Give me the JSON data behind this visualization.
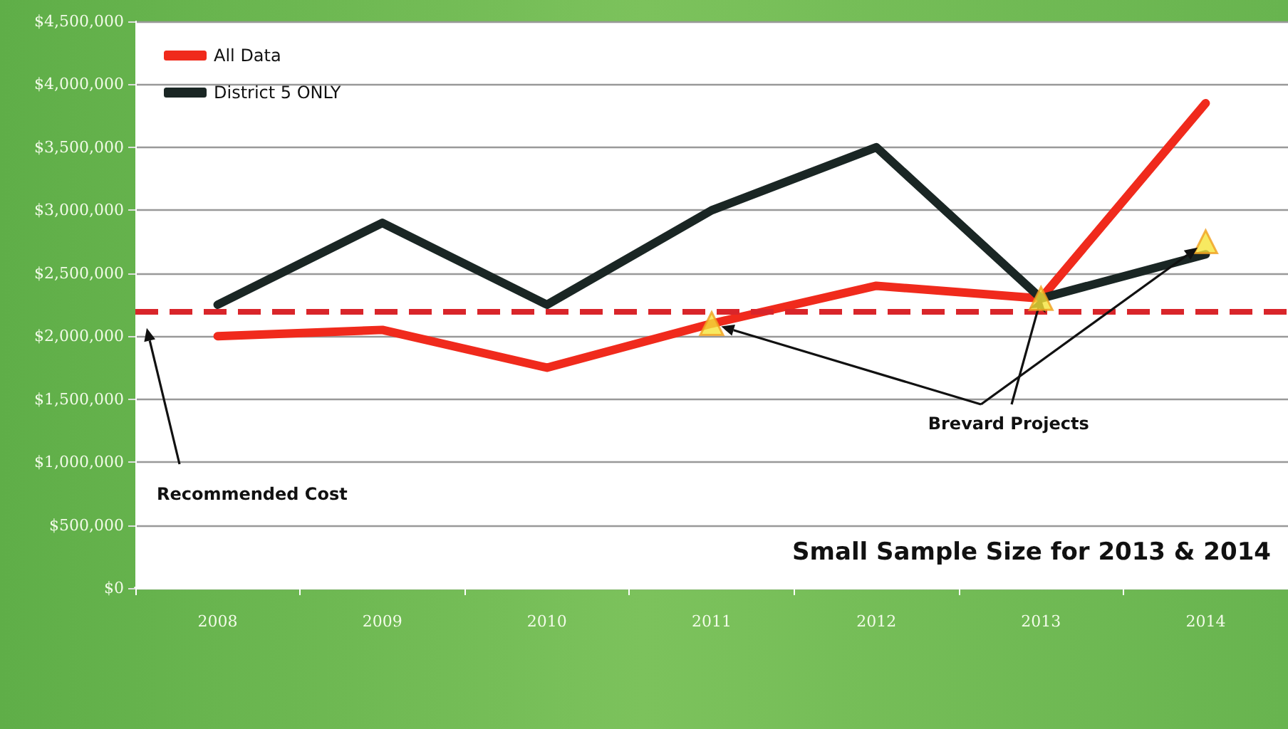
{
  "chart_data": {
    "type": "line",
    "categories": [
      "2008",
      "2009",
      "2010",
      "2011",
      "2012",
      "2013",
      "2014"
    ],
    "series": [
      {
        "name": "All Data",
        "color": "#f02a1c",
        "values": [
          2000000,
          2050000,
          1750000,
          2100000,
          2400000,
          2300000,
          3850000
        ]
      },
      {
        "name": "District 5 ONLY",
        "color": "#1a2624",
        "values": [
          2250000,
          2900000,
          2250000,
          3000000,
          3500000,
          2300000,
          2650000
        ]
      },
      {
        "type": "scatter",
        "color": "#f5e33a",
        "marker": "triangle",
        "values": [
          null,
          null,
          null,
          2100000,
          null,
          2300000,
          2750000
        ]
      }
    ],
    "ylim": [
      0,
      4500000
    ],
    "yticks": [
      {
        "value": 0,
        "label": "$0"
      },
      {
        "value": 500000,
        "label": "$500,000"
      },
      {
        "value": 1000000,
        "label": "$1,000,000"
      },
      {
        "value": 1500000,
        "label": "$1,500,000"
      },
      {
        "value": 2000000,
        "label": "$2,000,000"
      },
      {
        "value": 2500000,
        "label": "$2,500,000"
      },
      {
        "value": 3000000,
        "label": "$3,000,000"
      },
      {
        "value": 3500000,
        "label": "$3,500,000"
      },
      {
        "value": 4000000,
        "label": "$4,000,000"
      },
      {
        "value": 4500000,
        "label": "$4,500,000"
      }
    ],
    "ref_lines": [
      {
        "axis": "y",
        "value": 2200000,
        "color": "#d9252a",
        "line_style": "dashed"
      }
    ],
    "annotations": [
      "Recommended Cost",
      {
        "text": "Brevard Projects",
        "x": "2013",
        "y": 2300000
      },
      "Small Sample Size for 2013 & 2014"
    ],
    "grid": "y",
    "legend": "top left",
    "marker": "none",
    "line_style": "solid"
  }
}
